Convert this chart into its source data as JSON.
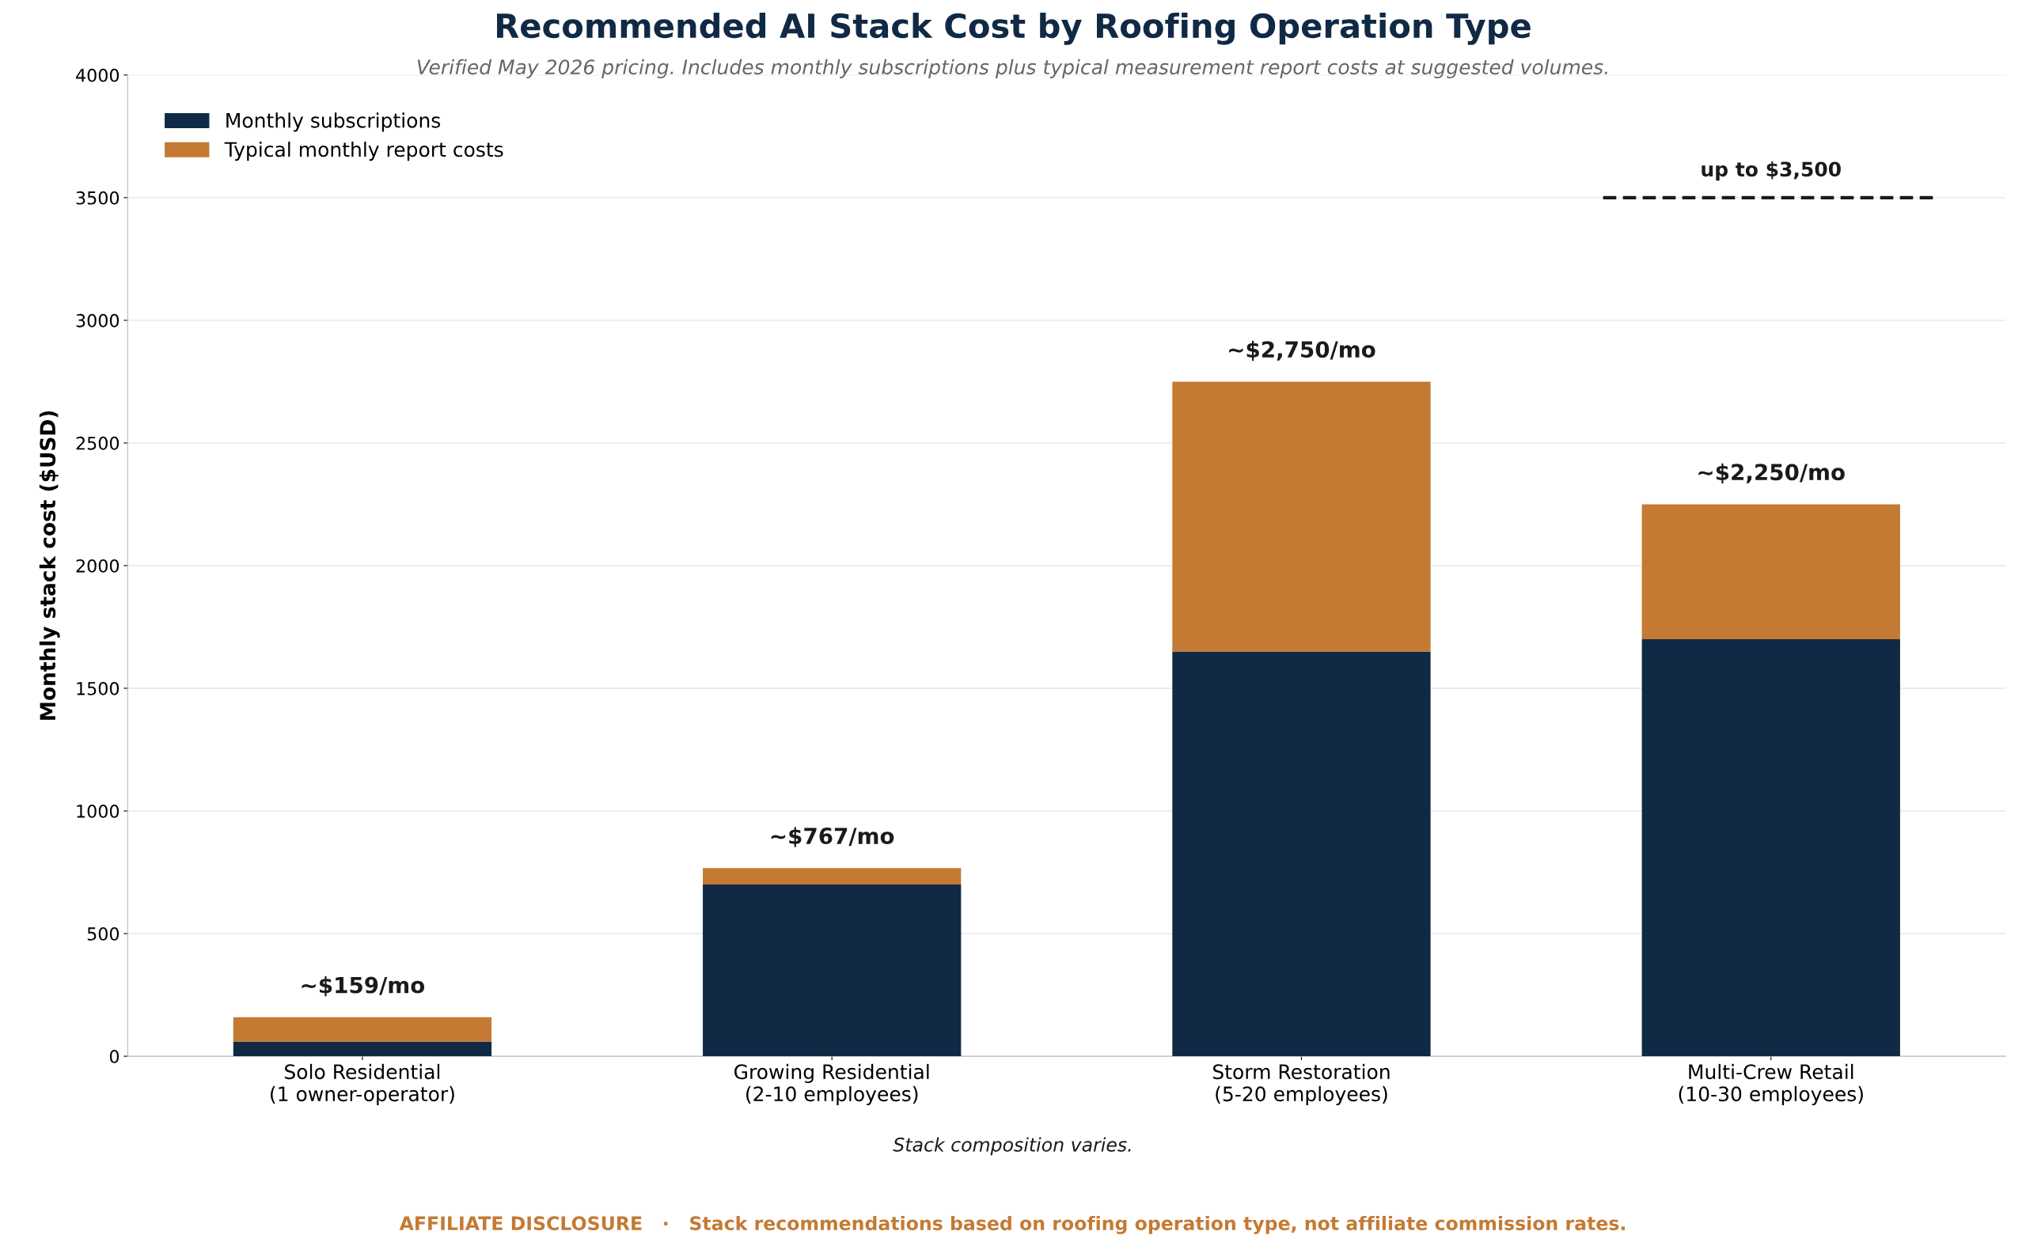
{
  "chart_data": {
    "type": "bar",
    "stacked": true,
    "title": "Recommended AI Stack Cost by Roofing Operation Type",
    "subtitle": "Verified May 2026 pricing. Includes monthly subscriptions plus typical measurement report costs at suggested volumes.",
    "ylabel": "Monthly stack cost ($USD)",
    "categories": [
      "Solo Residential\n(1 owner-operator)",
      "Growing Residential\n(2-10 employees)",
      "Storm Restoration\n(5-20 employees)",
      "Multi-Crew Retail\n(10-30 employees)"
    ],
    "series": [
      {
        "name": "Monthly subscriptions",
        "color": "#102a45",
        "values": [
          60,
          700,
          1650,
          1700
        ]
      },
      {
        "name": "Typical monthly report costs",
        "color": "#c47a33",
        "values": [
          99,
          67,
          1100,
          550
        ]
      }
    ],
    "totals": [
      "~$159/mo",
      "~$767/mo",
      "~$2,750/mo",
      "~$2,250/mo"
    ],
    "ylim": [
      0,
      4000
    ],
    "yticks": [
      0,
      500,
      1000,
      1500,
      2000,
      2500,
      3000,
      3500,
      4000
    ],
    "ref_lines": [
      {
        "axis": "y",
        "value": 3500,
        "label": "up to $3,500",
        "color": "#1a1a1a",
        "line_style": "dashed"
      }
    ],
    "grid": "y",
    "legend": "top left",
    "annotations": [
      "Stack composition varies.",
      "AFFILIATE DISCLOSURE   ·   Stack recommendations based on roofing operation type, not affiliate commission rates."
    ]
  }
}
